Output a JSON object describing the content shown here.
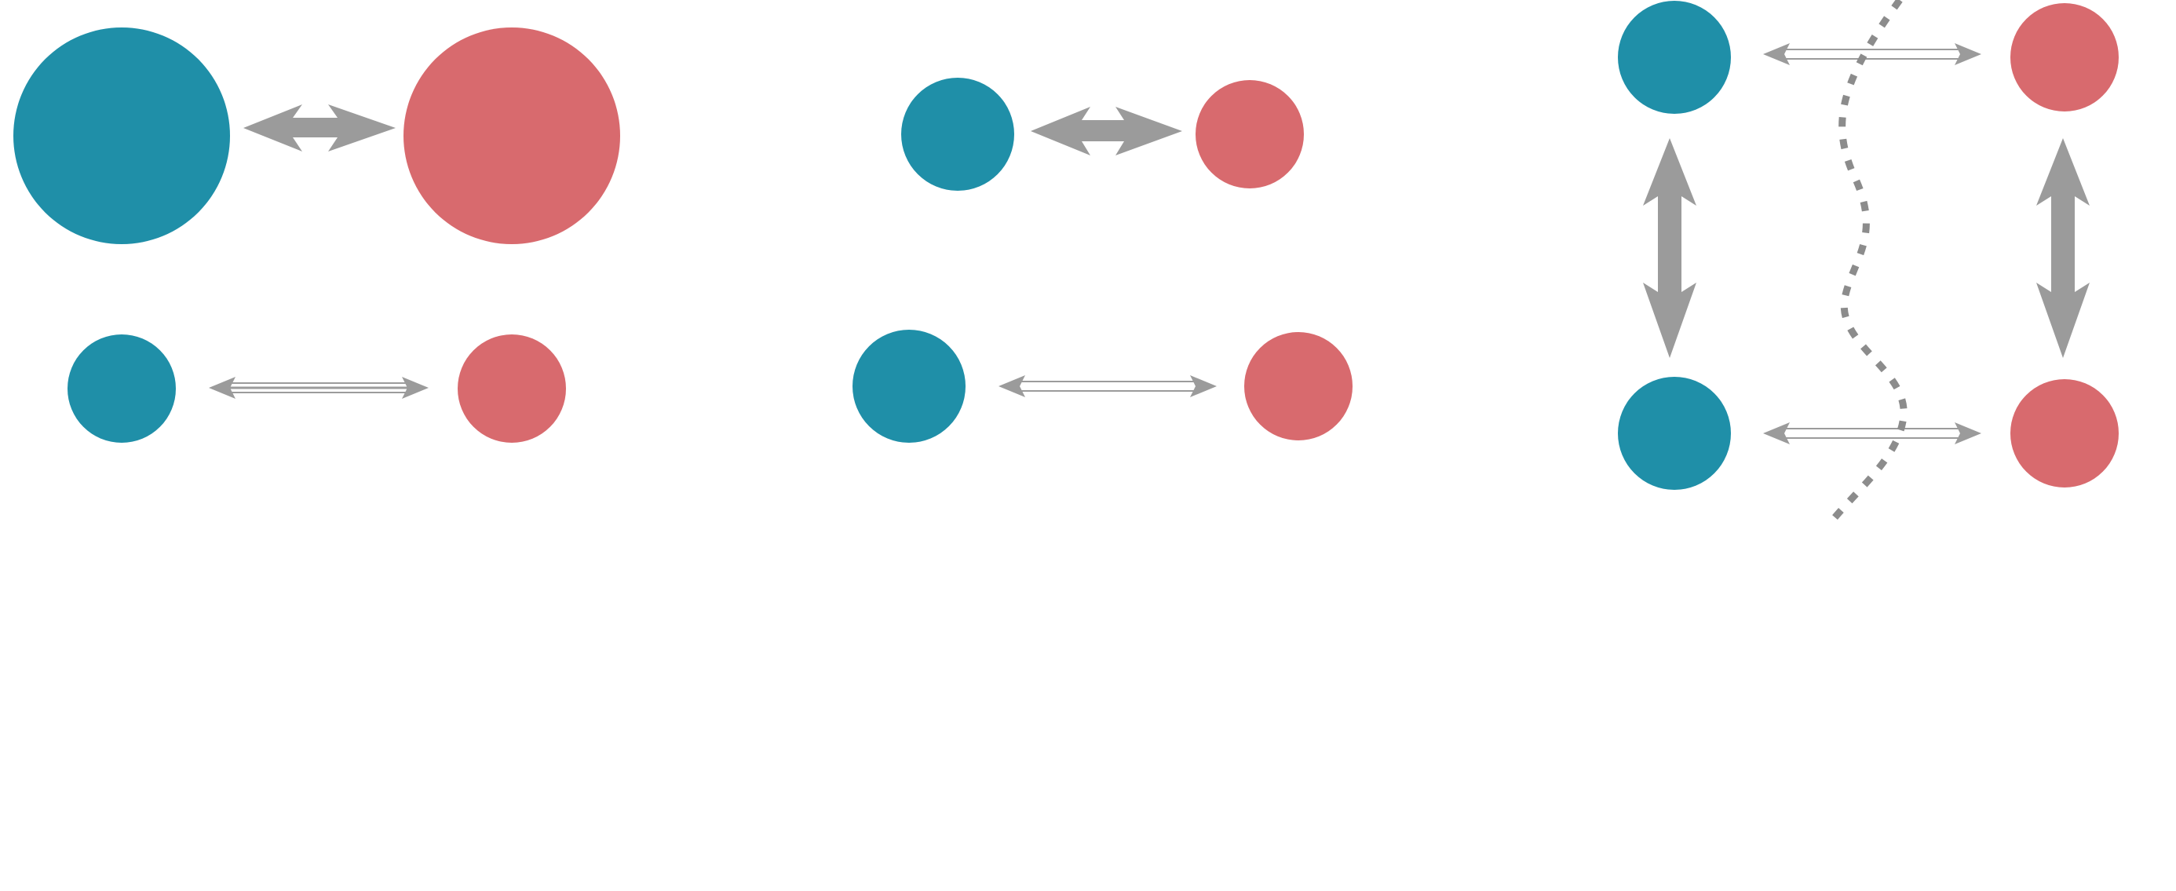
{
  "colors": {
    "background": "#ffffff",
    "node_teal": "#1f8fa8",
    "node_red": "#d86a6e",
    "arrow_gray": "#9b9b9b",
    "divider_gray": "#8c8c8c"
  },
  "panels": [
    {
      "id": "panel-1",
      "description_keys": [
        "strong-pair",
        "weak-pair"
      ],
      "links": [
        {
          "from": "teal",
          "to": "red",
          "strength": "strong"
        },
        {
          "from": "teal",
          "to": "red",
          "strength": "weak"
        }
      ]
    },
    {
      "id": "panel-2",
      "links": [
        {
          "from": "teal",
          "to": "red",
          "strength": "strong"
        },
        {
          "from": "teal",
          "to": "red",
          "strength": "weak"
        }
      ]
    },
    {
      "id": "panel-3",
      "links": [
        {
          "from": "teal",
          "to": "red",
          "strength": "weak"
        },
        {
          "from": "teal",
          "to": "teal",
          "strength": "strong"
        },
        {
          "from": "red",
          "to": "red",
          "strength": "strong"
        },
        {
          "from": "teal",
          "to": "red",
          "strength": "weak"
        }
      ],
      "divider": "dotted-curve"
    }
  ]
}
